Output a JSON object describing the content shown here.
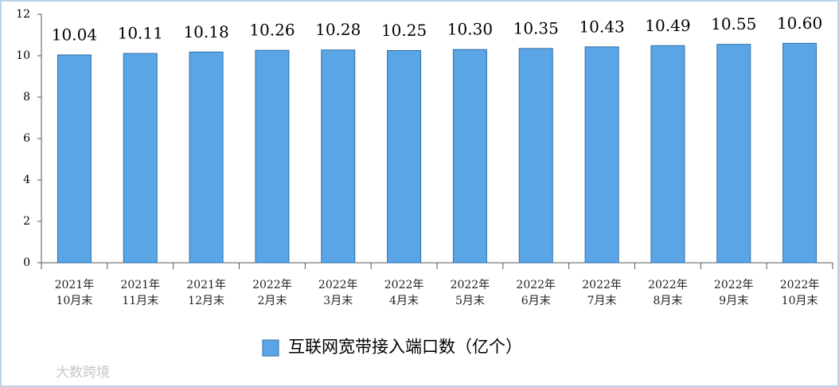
{
  "chart_data": {
    "type": "bar",
    "categories": [
      "2021年\n10月末",
      "2021年\n11月末",
      "2021年\n12月末",
      "2022年\n2月末",
      "2022年\n3月末",
      "2022年\n4月末",
      "2022年\n5月末",
      "2022年\n6月末",
      "2022年\n7月末",
      "2022年\n8月末",
      "2022年\n9月末",
      "2022年\n10月末"
    ],
    "series": [
      {
        "name": "互联网宽带接入端口数（亿个）",
        "color": "#5aa5e6",
        "values": [
          10.04,
          10.11,
          10.18,
          10.26,
          10.28,
          10.25,
          10.3,
          10.35,
          10.43,
          10.49,
          10.55,
          10.6
        ],
        "value_labels": [
          "10.04",
          "10.11",
          "10.18",
          "10.26",
          "10.28",
          "10.25",
          "10.30",
          "10.35",
          "10.43",
          "10.49",
          "10.55",
          "10.60"
        ]
      }
    ],
    "ylim": [
      0,
      12
    ],
    "yticks": [
      0,
      2,
      4,
      6,
      8,
      10,
      12
    ],
    "legend": "bottom",
    "watermark": "大数跨境"
  }
}
